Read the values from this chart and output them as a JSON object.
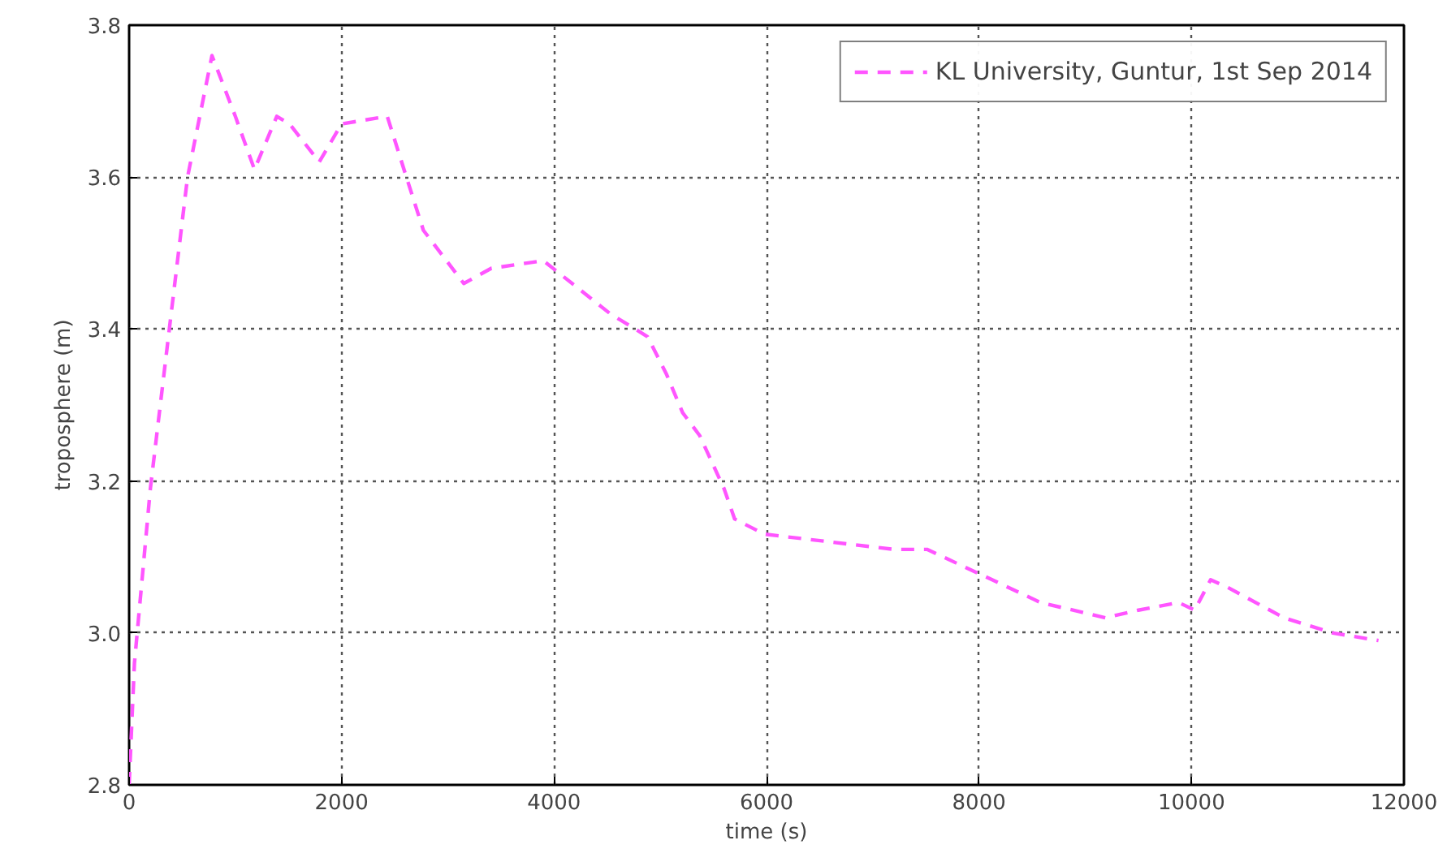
{
  "chart_data": {
    "type": "line",
    "xlabel": "time (s)",
    "ylabel": "troposphere (m)",
    "xlim": [
      0,
      12000
    ],
    "ylim": [
      2.8,
      3.8
    ],
    "xticks": [
      0,
      2000,
      4000,
      6000,
      8000,
      10000,
      12000
    ],
    "yticks": [
      {
        "value": 2.8,
        "label": "2.8"
      },
      {
        "value": 3.0,
        "label": "3.0"
      },
      {
        "value": 3.2,
        "label": "3.2"
      },
      {
        "value": 3.4,
        "label": "3.4"
      },
      {
        "value": 3.6,
        "label": "3.6"
      },
      {
        "value": 3.8,
        "label": "3.8"
      }
    ],
    "grid": true,
    "legend": "top right",
    "line_style": "dashed",
    "x": [
      0,
      50,
      200,
      370,
      550,
      780,
      1000,
      1180,
      1390,
      1510,
      1790,
      2000,
      2430,
      2610,
      2770,
      3150,
      3410,
      3900,
      4530,
      4880,
      5060,
      5210,
      5370,
      5600,
      5700,
      5980,
      6590,
      7200,
      7510,
      7970,
      8580,
      9190,
      9500,
      9880,
      10030,
      10180,
      10340,
      10870,
      11330,
      11760
    ],
    "series": [
      {
        "name": "KL University, Guntur, 1st Sep 2014",
        "color": "#ff55ff",
        "values": [
          2.8,
          2.96,
          3.19,
          3.39,
          3.6,
          3.76,
          3.68,
          3.61,
          3.68,
          3.67,
          3.62,
          3.67,
          3.68,
          3.6,
          3.53,
          3.46,
          3.48,
          3.49,
          3.42,
          3.39,
          3.34,
          3.29,
          3.26,
          3.19,
          3.15,
          3.13,
          3.12,
          3.11,
          3.11,
          3.08,
          3.04,
          3.02,
          3.03,
          3.04,
          3.03,
          3.07,
          3.06,
          3.02,
          3.0,
          2.99
        ]
      }
    ]
  }
}
